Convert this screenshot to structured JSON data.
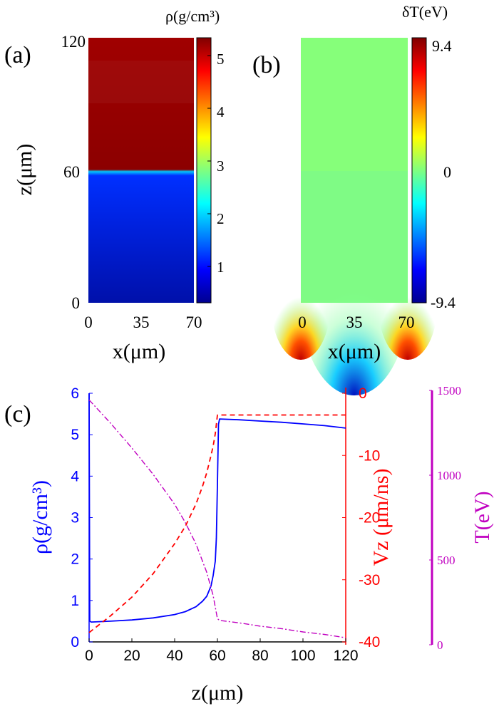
{
  "colors": {
    "rho_series": "#0000ff",
    "vz_series": "#ff0000",
    "t_series": "#c000c0",
    "background": "#ffffff",
    "text": "#000000"
  },
  "panels": {
    "a": {
      "label": "(a)",
      "colorbar_title": "ρ(g/cm³)",
      "colorbar_ticks": [
        "1",
        "2",
        "3",
        "4",
        "5"
      ],
      "xlabel": "x(μm)",
      "ylabel": "z(μm)",
      "xticks": [
        "0",
        "35",
        "70"
      ],
      "yticks": [
        "0",
        "60",
        "120"
      ]
    },
    "b": {
      "label": "(b)",
      "colorbar_title": "δT(eV)",
      "colorbar_ticks": [
        "-9.4",
        "0",
        "9.4"
      ],
      "xlabel": "x(μm)",
      "xticks": [
        "0",
        "35",
        "70"
      ]
    },
    "c": {
      "label": "(c)",
      "xlabel": "z(μm)",
      "left_ylabel": "ρ(g/cm³)",
      "mid_ylabel": "Vz (μm/ns)",
      "right_ylabel": "T(eV)",
      "xticks": [
        "0",
        "20",
        "40",
        "60",
        "80",
        "100",
        "120"
      ],
      "left_yticks": [
        "0",
        "1",
        "2",
        "3",
        "4",
        "5",
        "6"
      ],
      "mid_yticks": [
        "0",
        "-10",
        "-20",
        "-30",
        "-40"
      ],
      "right_yticks": [
        "0",
        "500",
        "1000",
        "1500"
      ]
    }
  },
  "chart_data": [
    {
      "type": "heatmap",
      "title": "ρ(g/cm³)",
      "xlabel": "x(μm)",
      "ylabel": "z(μm)",
      "xlim": [
        0,
        70
      ],
      "ylim": [
        0,
        120
      ],
      "colorbar_range": [
        0.6,
        5.3
      ],
      "colormap": "jet",
      "description_values": {
        "z_interface": 60,
        "rho_below_interface": 0.6,
        "rho_above_interface": 5.3
      }
    },
    {
      "type": "heatmap",
      "title": "δT(eV)",
      "xlabel": "x(μm)",
      "xlim": [
        0,
        70
      ],
      "ylim": [
        0,
        120
      ],
      "colorbar_range": [
        -9.4,
        9.4
      ],
      "colormap": "jet",
      "description_values": {
        "bulk_value": 0,
        "min_at_x": 35,
        "min_value": -9.4,
        "max_at_x": [
          0,
          70
        ],
        "max_value": 9.4
      }
    },
    {
      "type": "line",
      "xlabel": "z(μm)",
      "xlim": [
        0,
        120
      ],
      "series": [
        {
          "name": "ρ(g/cm³)",
          "axis": "left",
          "ylim": [
            0,
            6
          ],
          "style": "solid",
          "x": [
            0,
            0.3,
            1,
            10,
            20,
            30,
            40,
            45,
            50,
            53,
            55,
            57,
            58,
            59,
            59.5,
            60,
            60.5,
            61,
            70,
            80,
            90,
            100,
            110,
            120
          ],
          "y": [
            6.0,
            0.5,
            0.48,
            0.5,
            0.53,
            0.58,
            0.66,
            0.73,
            0.85,
            0.98,
            1.1,
            1.35,
            1.6,
            1.95,
            2.5,
            3.8,
            5.25,
            5.38,
            5.36,
            5.33,
            5.3,
            5.26,
            5.22,
            5.16
          ]
        },
        {
          "name": "Vz (μm/ns)",
          "axis": "mid",
          "ylim": [
            -40,
            0
          ],
          "style": "dashed",
          "x": [
            0,
            10,
            20,
            30,
            40,
            45,
            50,
            53,
            55,
            57,
            58,
            59,
            59.5,
            60,
            61,
            70,
            80,
            90,
            100,
            110,
            120
          ],
          "y": [
            -38.5,
            -35.8,
            -32.8,
            -29.0,
            -24.2,
            -21.4,
            -17.8,
            -15.0,
            -12.8,
            -10.0,
            -8.5,
            -6.5,
            -5.0,
            -3.5,
            -3.5,
            -3.5,
            -3.5,
            -3.5,
            -3.5,
            -3.5,
            -3.5
          ]
        },
        {
          "name": "T(eV)",
          "axis": "right",
          "ylim": [
            0,
            1500
          ],
          "style": "dashdot",
          "x": [
            0,
            10,
            20,
            30,
            40,
            45,
            50,
            55,
            58,
            60,
            61,
            70,
            80,
            90,
            100,
            110,
            120
          ],
          "y": [
            1460,
            1320,
            1170,
            1010,
            830,
            720,
            590,
            420,
            280,
            140,
            130,
            115,
            95,
            80,
            60,
            45,
            25
          ]
        }
      ]
    }
  ]
}
